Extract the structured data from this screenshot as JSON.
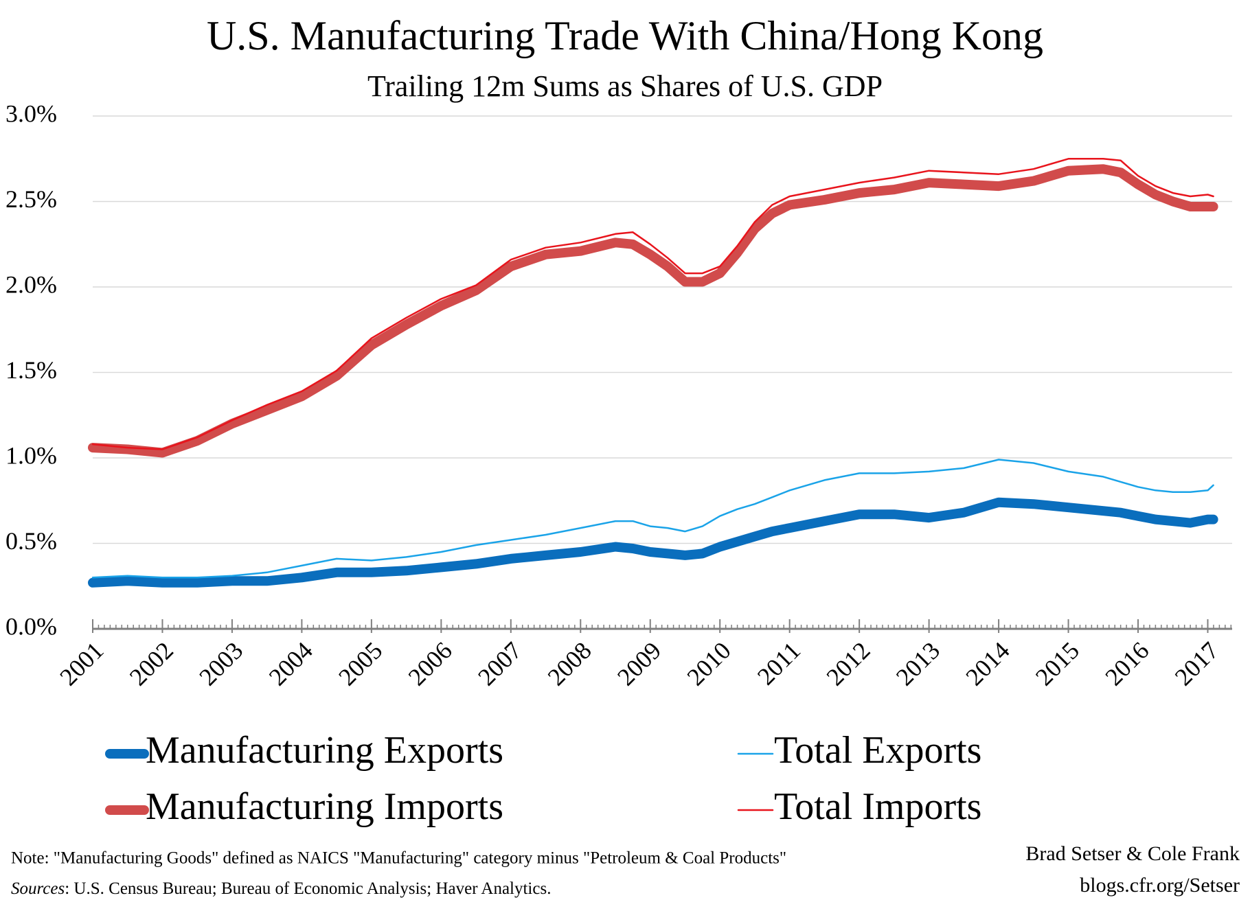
{
  "chart_data": {
    "type": "line",
    "title": "U.S. Manufacturing Trade With China/Hong Kong",
    "subtitle": "Trailing 12m Sums as Shares of U.S. GDP",
    "x": [
      2001,
      2001.5,
      2002,
      2002.5,
      2003,
      2003.5,
      2004,
      2004.5,
      2005,
      2005.5,
      2006,
      2006.5,
      2007,
      2007.5,
      2008,
      2008.5,
      2008.75,
      2009,
      2009.25,
      2009.5,
      2009.75,
      2010,
      2010.25,
      2010.5,
      2010.75,
      2011,
      2011.5,
      2012,
      2012.5,
      2013,
      2013.5,
      2014,
      2014.5,
      2015,
      2015.5,
      2015.75,
      2016,
      2016.25,
      2016.5,
      2016.75,
      2017,
      2017.08
    ],
    "series": [
      {
        "name": "Manufacturing Exports",
        "color": "#0a6ebd",
        "line_width": 14,
        "values": [
          0.27,
          0.28,
          0.27,
          0.27,
          0.28,
          0.28,
          0.3,
          0.33,
          0.33,
          0.34,
          0.36,
          0.38,
          0.41,
          0.43,
          0.45,
          0.48,
          0.47,
          0.45,
          0.44,
          0.43,
          0.44,
          0.48,
          0.51,
          0.54,
          0.57,
          0.59,
          0.63,
          0.67,
          0.67,
          0.65,
          0.68,
          0.74,
          0.73,
          0.71,
          0.69,
          0.68,
          0.66,
          0.64,
          0.63,
          0.62,
          0.64,
          0.64
        ]
      },
      {
        "name": "Total Exports",
        "color": "#1aa3e8",
        "line_width": 2.5,
        "values": [
          0.3,
          0.31,
          0.3,
          0.3,
          0.31,
          0.33,
          0.37,
          0.41,
          0.4,
          0.42,
          0.45,
          0.49,
          0.52,
          0.55,
          0.59,
          0.63,
          0.63,
          0.6,
          0.59,
          0.57,
          0.6,
          0.66,
          0.7,
          0.73,
          0.77,
          0.81,
          0.87,
          0.91,
          0.91,
          0.92,
          0.94,
          0.99,
          0.97,
          0.92,
          0.89,
          0.86,
          0.83,
          0.81,
          0.8,
          0.8,
          0.81,
          0.84
        ]
      },
      {
        "name": "Manufacturing Imports",
        "color": "#d14b4b",
        "line_width": 14,
        "values": [
          1.06,
          1.05,
          1.03,
          1.1,
          1.2,
          1.28,
          1.36,
          1.48,
          1.66,
          1.78,
          1.89,
          1.98,
          2.12,
          2.19,
          2.21,
          2.26,
          2.25,
          2.19,
          2.12,
          2.03,
          2.03,
          2.08,
          2.2,
          2.34,
          2.43,
          2.48,
          2.51,
          2.55,
          2.57,
          2.61,
          2.6,
          2.59,
          2.62,
          2.68,
          2.69,
          2.67,
          2.6,
          2.54,
          2.5,
          2.47,
          2.47,
          2.47
        ]
      },
      {
        "name": "Total Imports",
        "color": "#e8141c",
        "line_width": 2.5,
        "values": [
          1.08,
          1.06,
          1.05,
          1.12,
          1.22,
          1.31,
          1.39,
          1.51,
          1.7,
          1.82,
          1.93,
          2.01,
          2.16,
          2.23,
          2.26,
          2.31,
          2.32,
          2.25,
          2.17,
          2.08,
          2.08,
          2.12,
          2.24,
          2.38,
          2.48,
          2.53,
          2.57,
          2.61,
          2.64,
          2.68,
          2.67,
          2.66,
          2.69,
          2.75,
          2.75,
          2.74,
          2.65,
          2.59,
          2.55,
          2.53,
          2.54,
          2.53
        ]
      }
    ],
    "xlim": [
      2001,
      2017.35
    ],
    "xticks": [
      2001,
      2002,
      2003,
      2004,
      2005,
      2006,
      2007,
      2008,
      2009,
      2010,
      2011,
      2012,
      2013,
      2014,
      2015,
      2016,
      2017
    ],
    "ylim": [
      0,
      3
    ],
    "yticks": [
      {
        "value": 0,
        "label": "0.0%"
      },
      {
        "value": 0.5,
        "label": "0.5%"
      },
      {
        "value": 1,
        "label": "1.0%"
      },
      {
        "value": 1.5,
        "label": "1.5%"
      },
      {
        "value": 2,
        "label": "2.0%"
      },
      {
        "value": 2.5,
        "label": "2.5%"
      },
      {
        "value": 3,
        "label": "3.0%"
      }
    ],
    "grid": true,
    "note": "Note: \"Manufacturing Goods\" defined as NAICS \"Manufacturing\" category minus \"Petroleum & Coal Products\"",
    "sources_label": "Sources",
    "sources": ": U.S. Census Bureau; Bureau of Economic Analysis; Haver Analytics.",
    "credit": "Brad Setser & Cole Frank",
    "credit_url": "blogs.cfr.org/Setser"
  }
}
